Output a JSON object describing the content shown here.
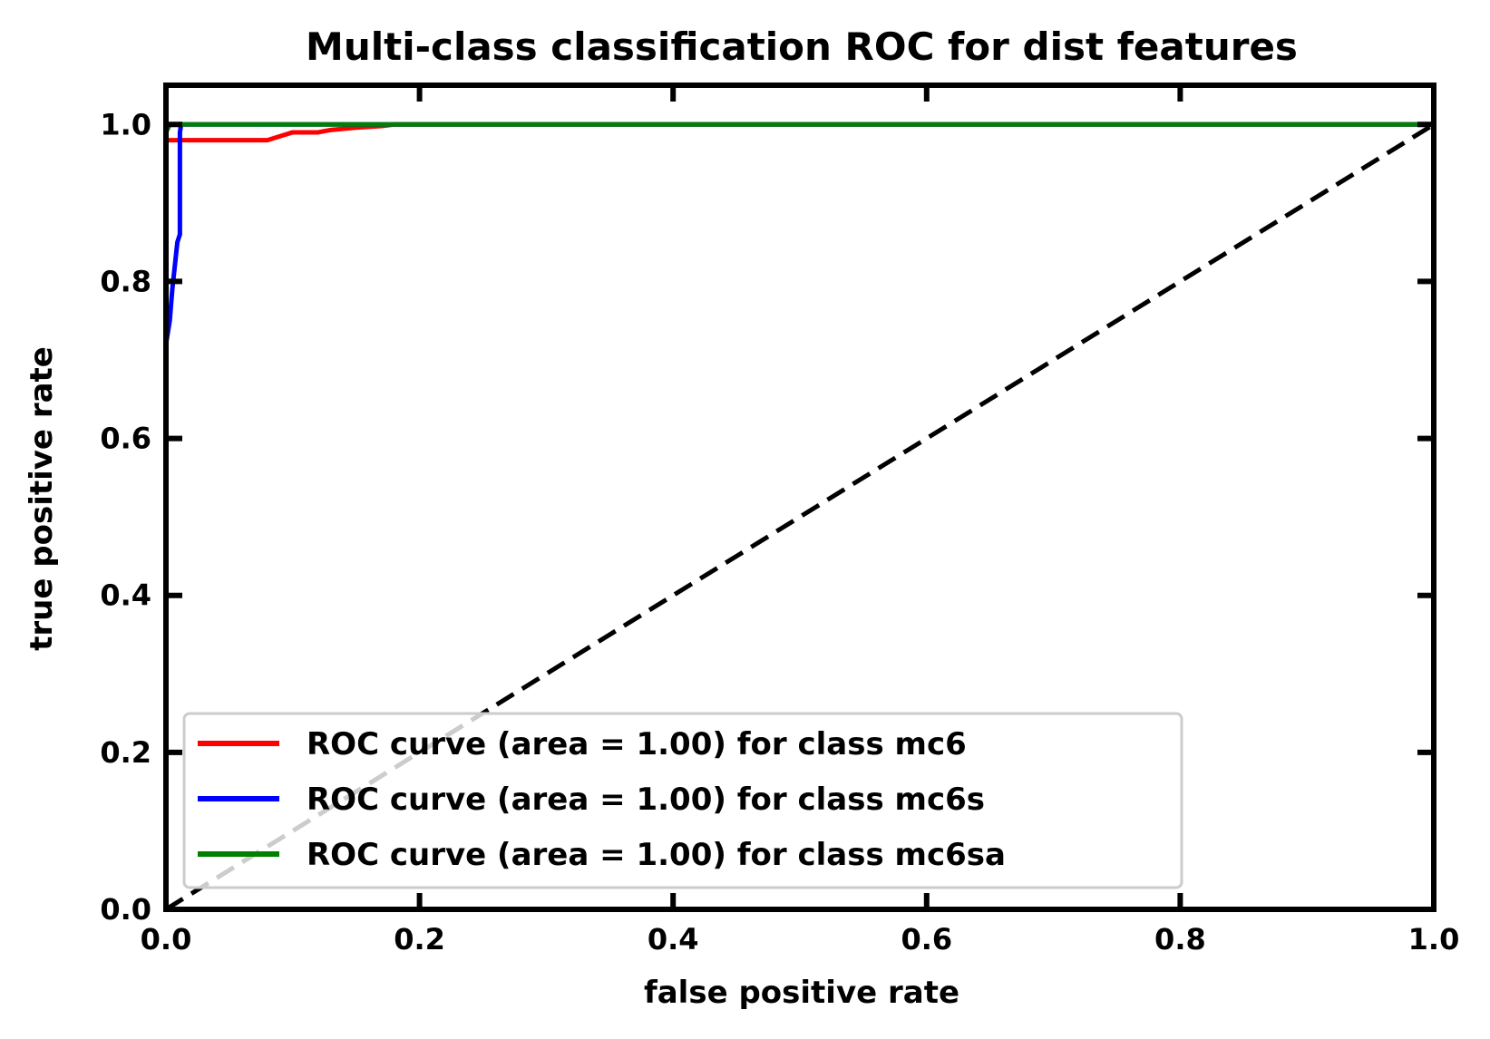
{
  "chart_data": {
    "type": "line",
    "title": "Multi-class classification ROC for dist features",
    "xlabel": "false positive rate",
    "ylabel": "true positive rate",
    "xlim": [
      0.0,
      1.0
    ],
    "ylim": [
      0.0,
      1.05
    ],
    "xticks": [
      "0.0",
      "0.2",
      "0.4",
      "0.6",
      "0.8",
      "1.0"
    ],
    "yticks": [
      "0.0",
      "0.2",
      "0.4",
      "0.6",
      "0.8",
      "1.0"
    ],
    "xtick_values": [
      0.0,
      0.2,
      0.4,
      0.6,
      0.8,
      1.0
    ],
    "ytick_values": [
      0.0,
      0.2,
      0.4,
      0.6,
      0.8,
      1.0
    ],
    "grid": false,
    "legend_position": "lower-right",
    "series": [
      {
        "name": "ROC curve (area = 1.00) for class mc6",
        "color": "#ff0000",
        "x": [
          0.0,
          0.0,
          0.004,
          0.08,
          0.09,
          0.1,
          0.12,
          0.13,
          0.15,
          0.17,
          0.18,
          1.0
        ],
        "y": [
          0.0,
          0.98,
          0.98,
          0.98,
          0.985,
          0.99,
          0.99,
          0.993,
          0.996,
          0.998,
          1.0,
          1.0
        ]
      },
      {
        "name": "ROC curve (area = 1.00) for class mc6s",
        "color": "#0000ff",
        "x": [
          0.0,
          0.0,
          0.003,
          0.005,
          0.007,
          0.009,
          0.011,
          0.011,
          0.012,
          1.0
        ],
        "y": [
          0.0,
          0.72,
          0.75,
          0.79,
          0.82,
          0.85,
          0.86,
          0.99,
          1.0,
          1.0
        ]
      },
      {
        "name": "ROC curve (area = 1.00) for class mc6sa",
        "color": "#008000",
        "x": [
          0.0,
          0.0,
          0.003,
          1.0
        ],
        "y": [
          0.0,
          0.99,
          1.0,
          1.0
        ]
      }
    ],
    "reference_line": {
      "x": [
        0.0,
        1.0
      ],
      "y": [
        0.0,
        1.0
      ],
      "color": "#000000",
      "style": "dashed"
    }
  }
}
